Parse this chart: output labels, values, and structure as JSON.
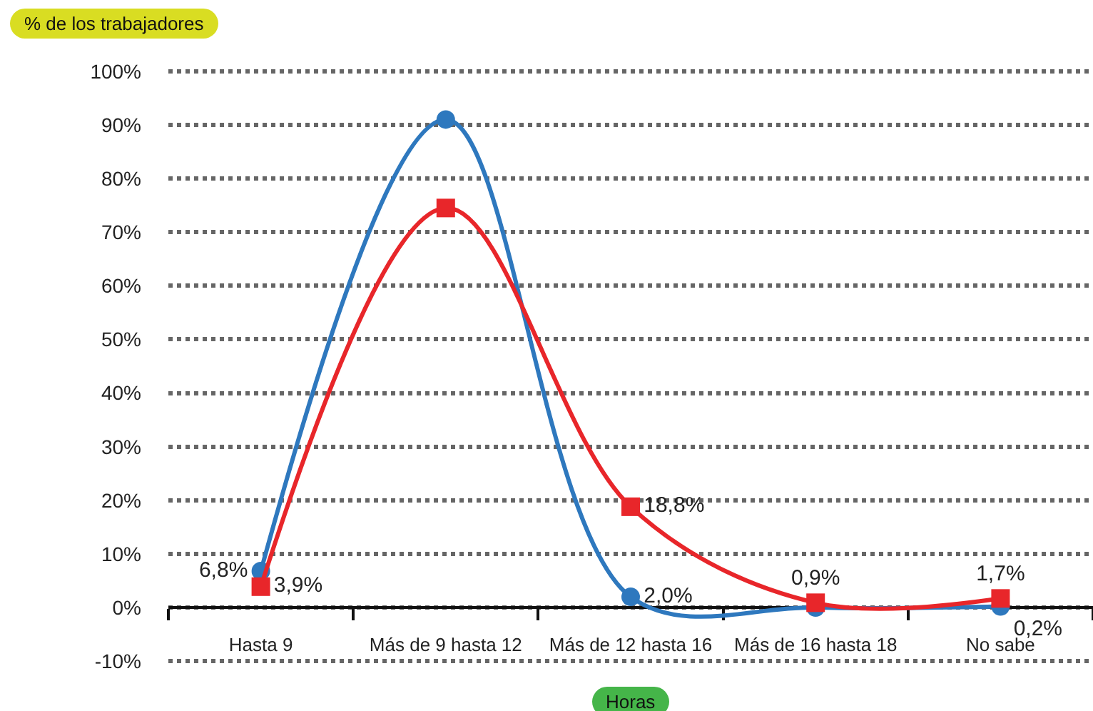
{
  "chart_data": {
    "type": "line",
    "xlabel": "Horas",
    "ylabel": "% de los trabajadores",
    "categories": [
      "Hasta 9",
      "Más de 9 hasta 12",
      "Más de 12 hasta 16",
      "Más de 16 hasta 18",
      "No sabe"
    ],
    "series": [
      {
        "color": "#2e78be",
        "marker": "circle",
        "values": [
          6.8,
          91,
          2.0,
          0,
          0.2
        ],
        "value_labels": [
          "6,8%",
          null,
          "2,0%",
          null,
          "0,2%"
        ]
      },
      {
        "color": "#e8262a",
        "marker": "square",
        "values": [
          3.9,
          74.5,
          18.8,
          0.9,
          1.7
        ],
        "value_labels": [
          "3,9%",
          null,
          "18,8%",
          "0,9%",
          "1,7%"
        ]
      }
    ],
    "ylim": [
      -10.5,
      100.5
    ],
    "yticks": [
      {
        "value": -10,
        "label": "-10%"
      },
      {
        "value": 0,
        "label": "0%"
      },
      {
        "value": 10,
        "label": "10%"
      },
      {
        "value": 20,
        "label": "20%"
      },
      {
        "value": 30,
        "label": "30%"
      },
      {
        "value": 40,
        "label": "40%"
      },
      {
        "value": 50,
        "label": "50%"
      },
      {
        "value": 60,
        "label": "60%"
      },
      {
        "value": 70,
        "label": "70%"
      },
      {
        "value": 80,
        "label": "80%"
      },
      {
        "value": 90,
        "label": "90%"
      },
      {
        "value": 100,
        "label": "100%"
      }
    ],
    "grid": "y",
    "line_style": "solid"
  }
}
